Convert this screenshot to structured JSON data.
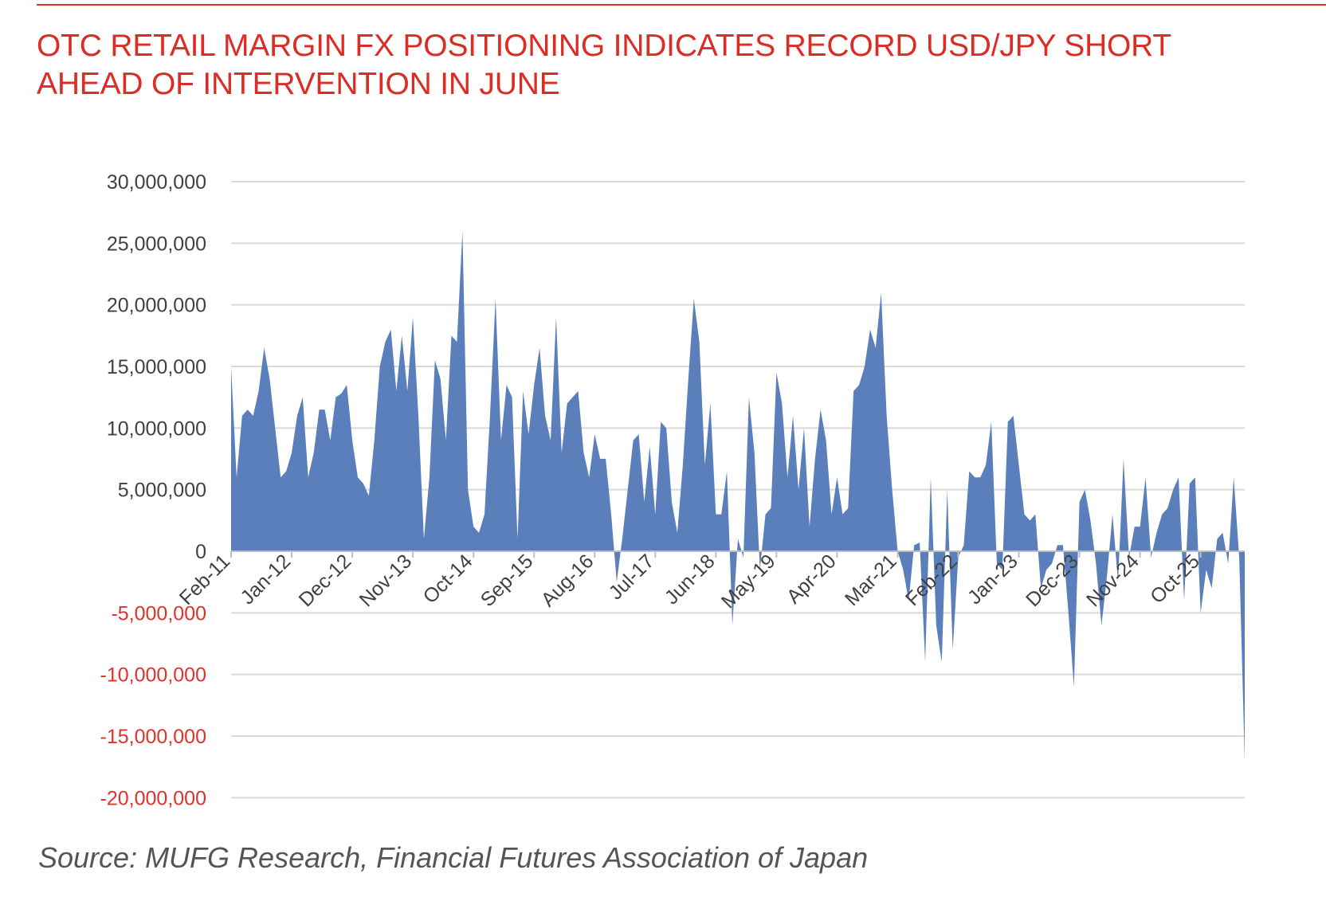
{
  "header": {
    "title_line1": "OTC RETAIL MARGIN FX POSITIONING INDICATES RECORD USD/JPY SHORT",
    "title_line2": "AHEAD OF INTERVENTION IN JUNE"
  },
  "footer": {
    "source": "Source: MUFG Research, Financial Futures Association of Japan"
  },
  "colors": {
    "title": "#dc2d25",
    "area_fill": "#5b7fba",
    "grid": "#d9d9d9",
    "negative_tick": "#e0312b",
    "positive_tick": "#404040"
  },
  "chart_data": {
    "type": "area",
    "title": "OTC RETAIL MARGIN FX POSITIONING INDICATES RECORD USD/JPY SHORT AHEAD OF INTERVENTION IN JUNE",
    "xlabel": "",
    "ylabel": "",
    "ylim": [
      -20000000,
      30000000
    ],
    "grid": true,
    "y_ticks": [
      30000000,
      25000000,
      20000000,
      15000000,
      10000000,
      5000000,
      0,
      -5000000,
      -10000000,
      -15000000,
      -20000000
    ],
    "y_tick_labels": [
      "30,000,000",
      "25,000,000",
      "20,000,000",
      "15,000,000",
      "10,000,000",
      "5,000,000",
      "0",
      "-5,000,000",
      "-10,000,000",
      "-15,000,000",
      "-20,000,000"
    ],
    "x_tick_labels": [
      "Feb-11",
      "Jan-12",
      "Dec-12",
      "Nov-13",
      "Oct-14",
      "Sep-15",
      "Aug-16",
      "Jul-17",
      "Jun-18",
      "May-19",
      "Apr-20",
      "Mar-21",
      "Feb-22",
      "Jan-23",
      "Dec-23",
      "Nov-24",
      "Oct-25"
    ],
    "x_start": "Feb-11",
    "x_end": "Jun-26",
    "series": [
      {
        "values": [
          15000000,
          6000000,
          11000000,
          11500000,
          11000000,
          13000000,
          16500000,
          14000000,
          10000000,
          6000000,
          6500000,
          8000000,
          11000000,
          12500000,
          6000000,
          8000000,
          11500000,
          11500000,
          9000000,
          12500000,
          12800000,
          13500000,
          9000000,
          6000000,
          5500000,
          4500000,
          9000000,
          15000000,
          17000000,
          18000000,
          13000000,
          17500000,
          13000000,
          19000000,
          11000000,
          1000000,
          6000000,
          15500000,
          14000000,
          9000000,
          17500000,
          17000000,
          26000000,
          5000000,
          2000000,
          1500000,
          3000000,
          11000000,
          20500000,
          9000000,
          13500000,
          12500000,
          1000000,
          13000000,
          9500000,
          13500000,
          16500000,
          11000000,
          9000000,
          19000000,
          8000000,
          12000000,
          12500000,
          13000000,
          8000000,
          6000000,
          9500000,
          7500000,
          7500000,
          3000000,
          -2500000,
          1000000,
          5000000,
          9000000,
          9500000,
          4000000,
          8500000,
          3000000,
          10500000,
          10000000,
          4000000,
          1500000,
          7000000,
          14000000,
          20500000,
          17000000,
          7000000,
          12000000,
          3000000,
          3000000,
          6500000,
          -6000000,
          1000000,
          -500000,
          12500000,
          8000000,
          -1500000,
          3000000,
          3500000,
          14500000,
          12000000,
          6000000,
          11000000,
          5000000,
          10000000,
          2000000,
          7500000,
          11500000,
          9000000,
          3000000,
          6000000,
          3000000,
          3500000,
          13000000,
          13500000,
          15000000,
          18000000,
          16500000,
          21000000,
          11000000,
          5000000,
          0,
          -1500000,
          -4000000,
          500000,
          700000,
          -9000000,
          6000000,
          -6000000,
          -9000000,
          5000000,
          -8000000,
          -500000,
          500000,
          6500000,
          6000000,
          6000000,
          7000000,
          10500000,
          -1000000,
          -1500000,
          10500000,
          11000000,
          7000000,
          3000000,
          2500000,
          3000000,
          -3000000,
          -1500000,
          -1000000,
          500000,
          500000,
          -5000000,
          -11000000,
          4000000,
          5000000,
          2500000,
          -1000000,
          -6000000,
          -2000000,
          3000000,
          -2500000,
          7500000,
          -500000,
          2000000,
          2000000,
          6000000,
          -500000,
          1500000,
          3000000,
          3500000,
          5000000,
          6000000,
          -4000000,
          5500000,
          6000000,
          -5000000,
          -1500000,
          -3000000,
          1000000,
          1500000,
          -1000000,
          6000000,
          -500000,
          -17000000
        ]
      }
    ]
  }
}
